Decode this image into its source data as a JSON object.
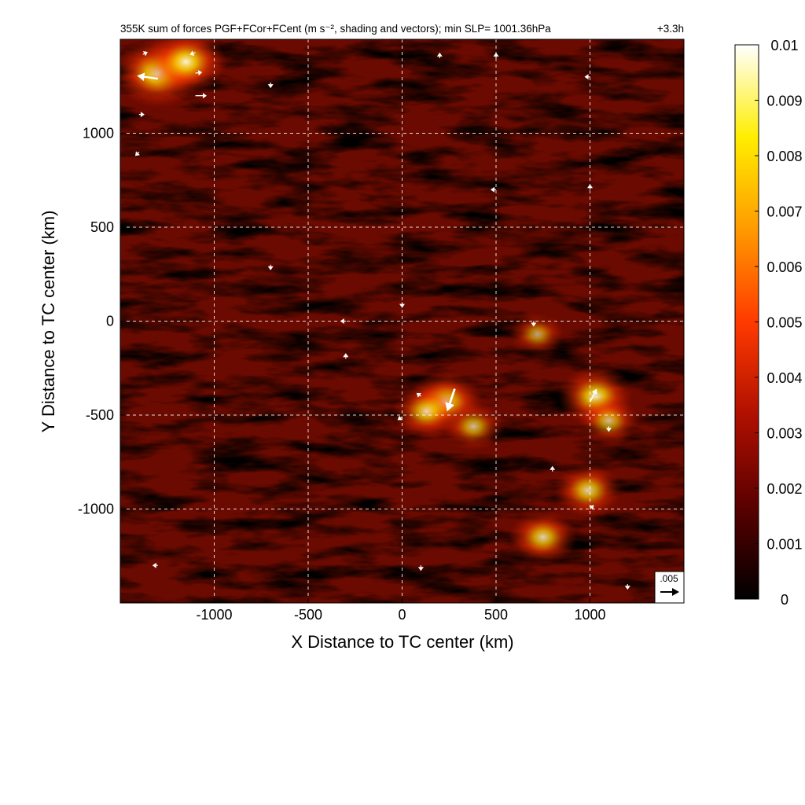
{
  "chart_data": {
    "type": "heatmap",
    "title": "355K sum of forces PGF+FCor+FCent (m s⁻², shading and vectors); min SLP= 1001.36hPa",
    "time_label": "+3.3h",
    "xlabel": "X Distance to TC center (km)",
    "ylabel": "Y Distance to TC center (km)",
    "xlim": [
      -1500,
      1500
    ],
    "ylim": [
      -1500,
      1500
    ],
    "x_ticks": [
      -1000,
      -500,
      0,
      500,
      1000
    ],
    "x_tick_labels": [
      "-1000",
      "-500",
      "0",
      "500",
      "1000"
    ],
    "y_ticks": [
      1000,
      500,
      0,
      -500,
      -1000
    ],
    "y_tick_labels": [
      "1000",
      "500",
      "0",
      "-500",
      "-1000"
    ],
    "grid": true,
    "colorbar": {
      "min": 0,
      "max": 0.01,
      "ticks": [
        0.01,
        0.009,
        0.008,
        0.007,
        0.006,
        0.005,
        0.004,
        0.003,
        0.002,
        0.001,
        0
      ],
      "tick_labels": [
        "0.01",
        "0.009",
        "0.008",
        "0.007",
        "0.006",
        "0.005",
        "0.004",
        "0.003",
        "0.002",
        "0.001",
        "0"
      ],
      "colors": [
        "#000000",
        "#5a0000",
        "#b01000",
        "#ff3a00",
        "#ff9a00",
        "#ffee00",
        "#ffffff"
      ]
    },
    "reference_vector": {
      "label": ".005",
      "magnitude": 0.005
    },
    "hotspots": [
      {
        "x": -1300,
        "y": 1320,
        "value": 0.008
      },
      {
        "x": -1150,
        "y": 1380,
        "value": 0.007
      },
      {
        "x": 230,
        "y": -430,
        "value": 0.006
      },
      {
        "x": 130,
        "y": -480,
        "value": 0.005
      },
      {
        "x": 380,
        "y": -560,
        "value": 0.004
      },
      {
        "x": 1030,
        "y": -400,
        "value": 0.006
      },
      {
        "x": 1100,
        "y": -530,
        "value": 0.004
      },
      {
        "x": 990,
        "y": -900,
        "value": 0.005
      },
      {
        "x": 750,
        "y": -1150,
        "value": 0.005
      },
      {
        "x": 720,
        "y": -70,
        "value": 0.003
      }
    ],
    "vectors": [
      {
        "x": -1380,
        "y": 1420,
        "u": 0.0008,
        "v": 0.0004
      },
      {
        "x": -1100,
        "y": 1430,
        "u": -0.0015,
        "v": -0.0006
      },
      {
        "x": -1100,
        "y": 1320,
        "u": 0.0018,
        "v": 0.0002
      },
      {
        "x": -1300,
        "y": 1290,
        "u": -0.0055,
        "v": 0.0008
      },
      {
        "x": -1100,
        "y": 1200,
        "u": 0.003,
        "v": 0.0
      },
      {
        "x": -700,
        "y": 1270,
        "u": 0.0,
        "v": -0.0015
      },
      {
        "x": -1400,
        "y": 1100,
        "u": 0.001,
        "v": 0.0
      },
      {
        "x": -1400,
        "y": 900,
        "u": -0.0003,
        "v": -0.0003
      },
      {
        "x": 200,
        "y": 1400,
        "u": 0.0,
        "v": 0.0009
      },
      {
        "x": 500,
        "y": 1400,
        "u": 0.0,
        "v": 0.0012
      },
      {
        "x": 1000,
        "y": 1300,
        "u": -0.0004,
        "v": 0.0
      },
      {
        "x": 1000,
        "y": 700,
        "u": 0.0,
        "v": 0.0005
      },
      {
        "x": 500,
        "y": 700,
        "u": -0.0004,
        "v": 0.0
      },
      {
        "x": -700,
        "y": 300,
        "u": 0.0,
        "v": -0.0004
      },
      {
        "x": 0,
        "y": 100,
        "u": 0.0,
        "v": -0.0004
      },
      {
        "x": -300,
        "y": 0,
        "u": -0.0004,
        "v": 0.0
      },
      {
        "x": 700,
        "y": 0,
        "u": 0.0,
        "v": -0.0004
      },
      {
        "x": -300,
        "y": -200,
        "u": 0.0,
        "v": 0.0003
      },
      {
        "x": 280,
        "y": -360,
        "u": -0.002,
        "v": -0.006
      },
      {
        "x": 100,
        "y": -400,
        "u": -0.0008,
        "v": 0.0006
      },
      {
        "x": 0,
        "y": -510,
        "u": -0.0012,
        "v": -0.0008
      },
      {
        "x": 1000,
        "y": -430,
        "u": 0.0018,
        "v": 0.0035
      },
      {
        "x": 1100,
        "y": -560,
        "u": 0.0,
        "v": -0.001
      },
      {
        "x": 1000,
        "y": -1000,
        "u": 0.001,
        "v": 0.001
      },
      {
        "x": 800,
        "y": -800,
        "u": 0.0,
        "v": 0.0004
      },
      {
        "x": 1200,
        "y": -1400,
        "u": 0.0,
        "v": -0.0004
      },
      {
        "x": 100,
        "y": -1300,
        "u": 0.0,
        "v": -0.0004
      },
      {
        "x": -1300,
        "y": -1300,
        "u": -0.0004,
        "v": 0.0
      }
    ]
  }
}
